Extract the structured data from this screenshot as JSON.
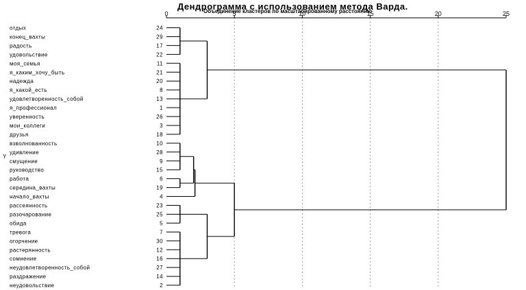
{
  "chart_data": {
    "type": "dendrogram",
    "title": "Дендрограмма с использованием метода Варда.",
    "subtitle": "Объединение кластеров по масштабированному расстоянию",
    "y_axis_label": "Y",
    "x_axis": {
      "range": [
        0,
        25
      ],
      "ticks": [
        0,
        5,
        10,
        15,
        20,
        25
      ],
      "gridlines": "dashed",
      "grid_at": [
        5,
        10,
        15,
        20
      ]
    },
    "leaves": [
      {
        "label": "отдых",
        "case": 24
      },
      {
        "label": "конец_вахты",
        "case": 29
      },
      {
        "label": "радость",
        "case": 17
      },
      {
        "label": "удовольствие",
        "case": 22
      },
      {
        "label": "моя_семья",
        "case": 11
      },
      {
        "label": "я_каким_хочу_быть",
        "case": 21
      },
      {
        "label": "надежда",
        "case": 20
      },
      {
        "label": "я_какой_есть",
        "case": 8
      },
      {
        "label": "удовлетворенность_собой",
        "case": 13
      },
      {
        "label": "я_профессионал",
        "case": 1
      },
      {
        "label": "уверенность",
        "case": 26
      },
      {
        "label": "мои_коллеги",
        "case": 3
      },
      {
        "label": "друзья",
        "case": 18
      },
      {
        "label": "взволнованность",
        "case": 10
      },
      {
        "label": "удивление",
        "case": 28
      },
      {
        "label": "смущение",
        "case": 9
      },
      {
        "label": "руководство",
        "case": 15
      },
      {
        "label": "работа",
        "case": 6
      },
      {
        "label": "середина_вахты",
        "case": 19
      },
      {
        "label": "начало_вахты",
        "case": 4
      },
      {
        "label": "рассеянность",
        "case": 23
      },
      {
        "label": "разочарование",
        "case": 25
      },
      {
        "label": "обида",
        "case": 5
      },
      {
        "label": "тревога",
        "case": 7
      },
      {
        "label": "огорчение",
        "case": 30
      },
      {
        "label": "растерянность",
        "case": 12
      },
      {
        "label": "сомнение",
        "case": 16
      },
      {
        "label": "неудовлетворенность_собой",
        "case": 27
      },
      {
        "label": "раздражение",
        "case": 14
      },
      {
        "label": "неудовольствие",
        "case": 2
      }
    ],
    "merges": [
      {
        "id": "A",
        "children": [
          "L0",
          "L1",
          "L2",
          "L3"
        ],
        "height": 1
      },
      {
        "id": "B",
        "children": [
          "L4",
          "L5",
          "L6",
          "L7",
          "L8",
          "L9",
          "L10",
          "L11",
          "L12"
        ],
        "height": 1
      },
      {
        "id": "C",
        "children": [
          "A",
          "B"
        ],
        "height": 3
      },
      {
        "id": "D",
        "children": [
          "L13",
          "L14",
          "L15",
          "L16"
        ],
        "height": 1
      },
      {
        "id": "E",
        "children": [
          "L17",
          "L18"
        ],
        "height": 1
      },
      {
        "id": "E2",
        "children": [
          "D",
          "E"
        ],
        "height": 2
      },
      {
        "id": "F",
        "children": [
          "E2",
          "L19"
        ],
        "height": 2.1
      },
      {
        "id": "G",
        "children": [
          "L20",
          "L21",
          "L22"
        ],
        "height": 1
      },
      {
        "id": "H",
        "children": [
          "L23",
          "L24",
          "L25",
          "L26",
          "L27",
          "L28",
          "L29"
        ],
        "height": 1
      },
      {
        "id": "I",
        "children": [
          "G",
          "H"
        ],
        "height": 3
      },
      {
        "id": "J",
        "children": [
          "F",
          "I"
        ],
        "height": 5
      },
      {
        "id": "K",
        "children": [
          "C",
          "J"
        ],
        "height": 25
      }
    ]
  }
}
